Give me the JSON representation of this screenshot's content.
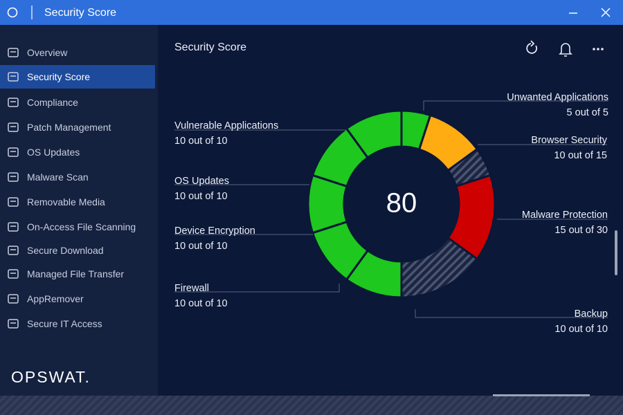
{
  "window": {
    "title": "Security Score"
  },
  "sidebar": {
    "items": [
      "Overview",
      "Security Score",
      "Compliance",
      "Patch Management",
      "OS Updates",
      "Malware Scan",
      "Removable Media",
      "On-Access File Scanning",
      "Secure Download",
      "Managed File Transfer",
      "AppRemover",
      "Secure IT Access"
    ],
    "selected": 1,
    "logo": "OPSWAT."
  },
  "header": {
    "title": "Security Score"
  },
  "score_chart": {
    "type": "donut",
    "total": 80,
    "categories": [
      "Unwanted Applications",
      "Browser Security",
      "Malware Protection",
      "Backup",
      "Firewall",
      "Device Encryption",
      "OS Updates",
      "Vulnerable Applications"
    ],
    "values": [
      5,
      10,
      15,
      10,
      10,
      10,
      10,
      10
    ],
    "max_values": [
      5,
      15,
      30,
      10,
      10,
      10,
      10,
      10
    ],
    "value_labels": [
      "5 out of 5",
      "10 out of 15",
      "15 out of 30",
      "10 out of 10",
      "10 out of 10",
      "10 out of 10",
      "10 out of 10",
      "10 out of 10"
    ],
    "colors": [
      "#1ec81e",
      "#ffac12",
      "#cf0000",
      "#1ec81e",
      "#1ec81e",
      "#1ec81e",
      "#1ec81e",
      "#1ec81e"
    ]
  }
}
